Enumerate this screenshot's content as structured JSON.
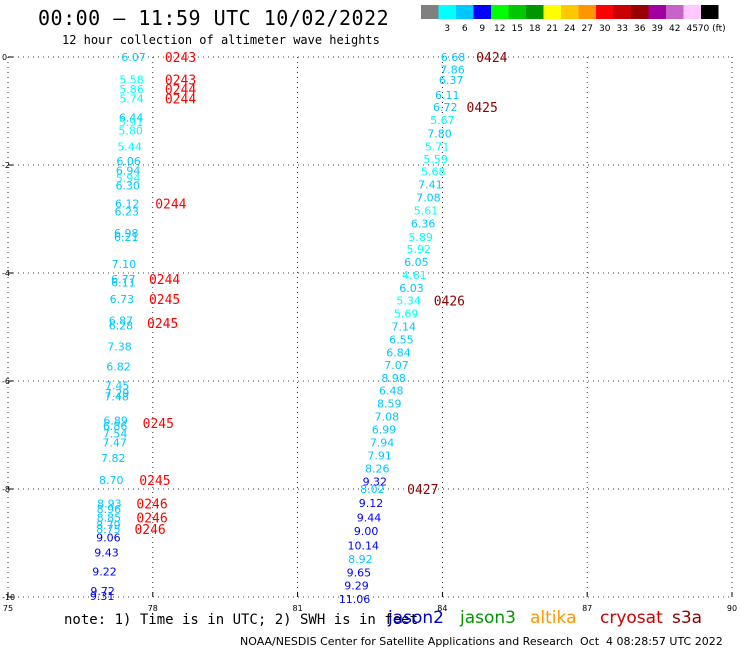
{
  "header": {
    "title": "00:00 – 11:59 UTC 10/02/2022",
    "subtitle": "12 hour collection of altimeter wave heights"
  },
  "legend": {
    "bins": [
      {
        "label": "",
        "color": "#808080"
      },
      {
        "label": "3",
        "color": "#00ffff"
      },
      {
        "label": "6",
        "color": "#00c8ff"
      },
      {
        "label": "9",
        "color": "#0000ff"
      },
      {
        "label": "12",
        "color": "#00ff00"
      },
      {
        "label": "15",
        "color": "#00c800"
      },
      {
        "label": "18",
        "color": "#009600"
      },
      {
        "label": "21",
        "color": "#ffff00"
      },
      {
        "label": "24",
        "color": "#ffc800"
      },
      {
        "label": "27",
        "color": "#ff9600"
      },
      {
        "label": "30",
        "color": "#ff0000"
      },
      {
        "label": "33",
        "color": "#c80000"
      },
      {
        "label": "36",
        "color": "#960000"
      },
      {
        "label": "39",
        "color": "#a000a0"
      },
      {
        "label": "42",
        "color": "#c864c8"
      },
      {
        "label": "45",
        "color": "#ffc8ff"
      },
      {
        "label": "70 (ft)",
        "color": "#000000"
      }
    ]
  },
  "footer": {
    "note": "note: 1) Time is in UTC; 2) SWH is in feet",
    "satellites": [
      {
        "name": "jason2",
        "color": "#0000cc"
      },
      {
        "name": "jason3",
        "color": "#009600"
      },
      {
        "name": "altika",
        "color": "#ff9600"
      },
      {
        "name": "cryosat",
        "color": "#cc0000"
      },
      {
        "name": "s3a",
        "color": "#8b0000"
      }
    ],
    "credit": "NOAA/NESDIS Center for Satellite Applications and Research",
    "timestamp": "Oct  4 08:28:57 UTC 2022"
  },
  "chart_data": {
    "type": "scatter",
    "xlim": [
      75,
      90
    ],
    "ylim": [
      -10,
      0
    ],
    "xticks": [
      75,
      78,
      81,
      84,
      87,
      90
    ],
    "yticks": [
      0,
      -2,
      -4,
      -6,
      -8,
      -10
    ],
    "grid": true,
    "series": [
      {
        "name": "cryosat",
        "points": [
          {
            "x": 77.6,
            "y": 0.0,
            "v": "6.07"
          },
          {
            "x": 77.56,
            "y": -0.42,
            "v": "5.58"
          },
          {
            "x": 77.56,
            "y": -0.59,
            "v": "5.86"
          },
          {
            "x": 77.56,
            "y": -0.77,
            "v": "5.74"
          },
          {
            "x": 77.55,
            "y": -1.12,
            "v": "6.44"
          },
          {
            "x": 77.55,
            "y": -1.2,
            "v": "5.91"
          },
          {
            "x": 77.54,
            "y": -1.36,
            "v": "5.80"
          },
          {
            "x": 77.52,
            "y": -1.66,
            "v": "5.44"
          },
          {
            "x": 77.5,
            "y": -1.93,
            "v": "6.06"
          },
          {
            "x": 77.49,
            "y": -2.1,
            "v": "6.94"
          },
          {
            "x": 77.49,
            "y": -2.24,
            "v": "5.94"
          },
          {
            "x": 77.48,
            "y": -2.38,
            "v": "6.30"
          },
          {
            "x": 77.47,
            "y": -2.71,
            "v": "6.12"
          },
          {
            "x": 77.46,
            "y": -2.86,
            "v": "6.23"
          },
          {
            "x": 77.45,
            "y": -3.26,
            "v": "6.98"
          },
          {
            "x": 77.45,
            "y": -3.33,
            "v": "6.21"
          },
          {
            "x": 77.4,
            "y": -3.83,
            "v": "7.10"
          },
          {
            "x": 77.39,
            "y": -4.11,
            "v": "6.77"
          },
          {
            "x": 77.39,
            "y": -4.18,
            "v": "6.11"
          },
          {
            "x": 77.36,
            "y": -4.48,
            "v": "6.73"
          },
          {
            "x": 77.34,
            "y": -4.88,
            "v": "6.87"
          },
          {
            "x": 77.34,
            "y": -4.97,
            "v": "6.28"
          },
          {
            "x": 77.31,
            "y": -5.36,
            "v": "7.38"
          },
          {
            "x": 77.29,
            "y": -5.73,
            "v": "6.82"
          },
          {
            "x": 77.26,
            "y": -6.08,
            "v": "7.45"
          },
          {
            "x": 77.26,
            "y": -6.22,
            "v": "7.29"
          },
          {
            "x": 77.25,
            "y": -6.29,
            "v": "7.48"
          },
          {
            "x": 77.23,
            "y": -6.73,
            "v": "6.89"
          },
          {
            "x": 77.22,
            "y": -6.83,
            "v": "6.86"
          },
          {
            "x": 77.22,
            "y": -6.97,
            "v": "7.54"
          },
          {
            "x": 77.21,
            "y": -7.14,
            "v": "7.47"
          },
          {
            "x": 77.18,
            "y": -7.43,
            "v": "7.82"
          },
          {
            "x": 77.14,
            "y": -7.83,
            "v": "8.70"
          },
          {
            "x": 77.1,
            "y": -8.27,
            "v": "8.93"
          },
          {
            "x": 77.09,
            "y": -8.37,
            "v": "8.96"
          },
          {
            "x": 77.09,
            "y": -8.53,
            "v": "8.85"
          },
          {
            "x": 77.08,
            "y": -8.67,
            "v": "8.79"
          },
          {
            "x": 77.08,
            "y": -8.74,
            "v": "8.75"
          }
        ]
      },
      {
        "name": "jason2",
        "points": [
          {
            "x": 77.08,
            "y": -8.9,
            "v": "9.06"
          },
          {
            "x": 77.04,
            "y": -9.18,
            "v": "9.43"
          },
          {
            "x": 77.0,
            "y": -9.53,
            "v": "9.22"
          },
          {
            "x": 76.96,
            "y": -9.89,
            "v": "9.72"
          },
          {
            "x": 76.95,
            "y": -9.98,
            "v": "9.31"
          }
        ]
      },
      {
        "name": "s3a",
        "points": [
          {
            "x": 84.22,
            "y": 0.0,
            "v": "6.68"
          },
          {
            "x": 84.21,
            "y": -0.23,
            "v": "7.86"
          },
          {
            "x": 84.18,
            "y": -0.43,
            "v": "6.37"
          },
          {
            "x": 84.1,
            "y": -0.7,
            "v": "6.11"
          },
          {
            "x": 84.06,
            "y": -0.93,
            "v": "6.72"
          },
          {
            "x": 84.0,
            "y": -1.17,
            "v": "5.67"
          },
          {
            "x": 83.94,
            "y": -1.42,
            "v": "7.80"
          },
          {
            "x": 83.89,
            "y": -1.66,
            "v": "5.71"
          },
          {
            "x": 83.86,
            "y": -1.89,
            "v": "5.59"
          },
          {
            "x": 83.81,
            "y": -2.12,
            "v": "5.68"
          },
          {
            "x": 83.75,
            "y": -2.36,
            "v": "7.41"
          },
          {
            "x": 83.71,
            "y": -2.6,
            "v": "7.08"
          },
          {
            "x": 83.66,
            "y": -2.84,
            "v": "5.61"
          },
          {
            "x": 83.6,
            "y": -3.08,
            "v": "6.36"
          },
          {
            "x": 83.55,
            "y": -3.33,
            "v": "5.89"
          },
          {
            "x": 83.51,
            "y": -3.56,
            "v": "5.92"
          },
          {
            "x": 83.46,
            "y": -3.8,
            "v": "6.05"
          },
          {
            "x": 83.42,
            "y": -4.04,
            "v": "4.61"
          },
          {
            "x": 83.36,
            "y": -4.28,
            "v": "6.03"
          },
          {
            "x": 83.3,
            "y": -4.51,
            "v": "5.34"
          },
          {
            "x": 83.25,
            "y": -4.75,
            "v": "5.69"
          },
          {
            "x": 83.2,
            "y": -4.99,
            "v": "7.14"
          },
          {
            "x": 83.15,
            "y": -5.23,
            "v": "6.55"
          },
          {
            "x": 83.09,
            "y": -5.47,
            "v": "6.84"
          },
          {
            "x": 83.05,
            "y": -5.7,
            "v": "7.07"
          },
          {
            "x": 82.99,
            "y": -5.94,
            "v": "8.98"
          },
          {
            "x": 82.94,
            "y": -6.18,
            "v": "6.48"
          },
          {
            "x": 82.9,
            "y": -6.42,
            "v": "8.59"
          },
          {
            "x": 82.85,
            "y": -6.66,
            "v": "7.08"
          },
          {
            "x": 82.79,
            "y": -6.9,
            "v": "6.99"
          },
          {
            "x": 82.75,
            "y": -7.14,
            "v": "7.94"
          },
          {
            "x": 82.7,
            "y": -7.38,
            "v": "7.91"
          },
          {
            "x": 82.65,
            "y": -7.62,
            "v": "8.26"
          }
        ]
      },
      {
        "name": "jason2",
        "points": [
          {
            "x": 82.6,
            "y": -7.86,
            "v": "9.32"
          },
          {
            "x": 82.55,
            "y": -8.0,
            "v": "8.02"
          },
          {
            "x": 82.52,
            "y": -8.26,
            "v": "9.12"
          },
          {
            "x": 82.48,
            "y": -8.53,
            "v": "9.44"
          },
          {
            "x": 82.42,
            "y": -8.78,
            "v": "9.00"
          },
          {
            "x": 82.36,
            "y": -9.05,
            "v": "10.14"
          },
          {
            "x": 82.3,
            "y": -9.3,
            "v": "8.92"
          },
          {
            "x": 82.27,
            "y": -9.55,
            "v": "9.65"
          },
          {
            "x": 82.22,
            "y": -9.79,
            "v": "9.29"
          },
          {
            "x": 82.18,
            "y": -10.04,
            "v": "11.06"
          }
        ]
      }
    ],
    "time_labels": [
      {
        "x": 78.25,
        "y": 0.0,
        "text": "0243",
        "satellite": "cryosat"
      },
      {
        "x": 78.25,
        "y": -0.42,
        "text": "0243",
        "satellite": "cryosat"
      },
      {
        "x": 78.25,
        "y": -0.59,
        "text": "0244",
        "satellite": "cryosat"
      },
      {
        "x": 78.25,
        "y": -0.77,
        "text": "0244",
        "satellite": "cryosat"
      },
      {
        "x": 78.05,
        "y": -2.71,
        "text": "0244",
        "satellite": "cryosat"
      },
      {
        "x": 77.92,
        "y": -4.11,
        "text": "0244",
        "satellite": "cryosat"
      },
      {
        "x": 77.92,
        "y": -4.48,
        "text": "0245",
        "satellite": "cryosat"
      },
      {
        "x": 77.88,
        "y": -4.93,
        "text": "0245",
        "satellite": "cryosat"
      },
      {
        "x": 77.79,
        "y": -6.78,
        "text": "0245",
        "satellite": "cryosat"
      },
      {
        "x": 77.72,
        "y": -7.83,
        "text": "0245",
        "satellite": "cryosat"
      },
      {
        "x": 77.66,
        "y": -8.27,
        "text": "0246",
        "satellite": "cryosat"
      },
      {
        "x": 77.66,
        "y": -8.53,
        "text": "0246",
        "satellite": "cryosat"
      },
      {
        "x": 77.62,
        "y": -8.74,
        "text": "0246",
        "satellite": "cryosat"
      },
      {
        "x": 84.7,
        "y": 0.0,
        "text": "0424",
        "satellite": "s3a"
      },
      {
        "x": 84.5,
        "y": -0.93,
        "text": "0425",
        "satellite": "s3a"
      },
      {
        "x": 83.82,
        "y": -4.51,
        "text": "0426",
        "satellite": "s3a"
      },
      {
        "x": 83.27,
        "y": -8.0,
        "text": "0427",
        "satellite": "s3a"
      }
    ]
  }
}
